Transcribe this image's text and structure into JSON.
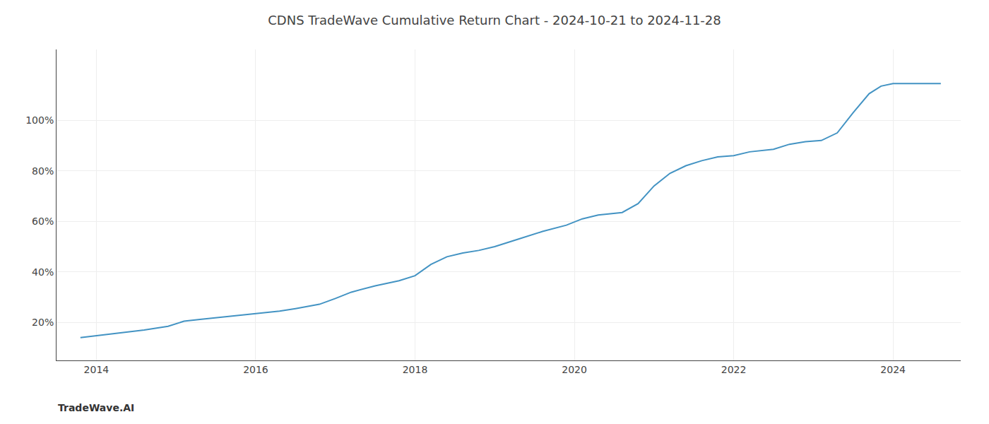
{
  "chart_data": {
    "type": "line",
    "title": "CDNS TradeWave Cumulative Return Chart - 2024-10-21 to 2024-11-28",
    "annotations": [
      "TradeWave.AI"
    ],
    "x": [
      2013.8,
      2014.0,
      2014.3,
      2014.6,
      2014.9,
      2015.1,
      2015.3,
      2015.6,
      2015.9,
      2016.1,
      2016.3,
      2016.5,
      2016.8,
      2017.0,
      2017.2,
      2017.5,
      2017.8,
      2018.0,
      2018.2,
      2018.4,
      2018.6,
      2018.8,
      2019.0,
      2019.3,
      2019.6,
      2019.9,
      2020.1,
      2020.3,
      2020.6,
      2020.8,
      2021.0,
      2021.2,
      2021.4,
      2021.6,
      2021.8,
      2022.0,
      2022.2,
      2022.5,
      2022.7,
      2022.9,
      2023.1,
      2023.3,
      2023.5,
      2023.7,
      2023.85,
      2024.0,
      2024.3,
      2024.6
    ],
    "values": [
      14.0,
      14.8,
      15.8,
      17.0,
      18.5,
      20.5,
      21.2,
      22.2,
      23.3,
      24.0,
      24.5,
      25.5,
      27.2,
      29.5,
      32.0,
      34.5,
      36.5,
      38.5,
      43.0,
      46.0,
      47.5,
      48.5,
      50.0,
      53.0,
      56.0,
      58.5,
      61.0,
      62.5,
      63.5,
      67.0,
      74.0,
      79.0,
      82.0,
      84.0,
      85.5,
      86.0,
      87.5,
      88.5,
      90.5,
      91.5,
      92.0,
      95.0,
      103.0,
      110.5,
      113.5,
      114.5,
      114.5,
      114.5
    ],
    "color": "#4393c3",
    "xlim": [
      2013.5,
      2024.85
    ],
    "xticks": [
      2014,
      2016,
      2018,
      2020,
      2022,
      2024
    ],
    "ylim": [
      5,
      128
    ],
    "yticks": [
      {
        "value": 20,
        "label": "20%"
      },
      {
        "value": 40,
        "label": "40%"
      },
      {
        "value": 60,
        "label": "60%"
      },
      {
        "value": 80,
        "label": "80%"
      },
      {
        "value": 100,
        "label": "100%"
      }
    ],
    "grid": true
  }
}
